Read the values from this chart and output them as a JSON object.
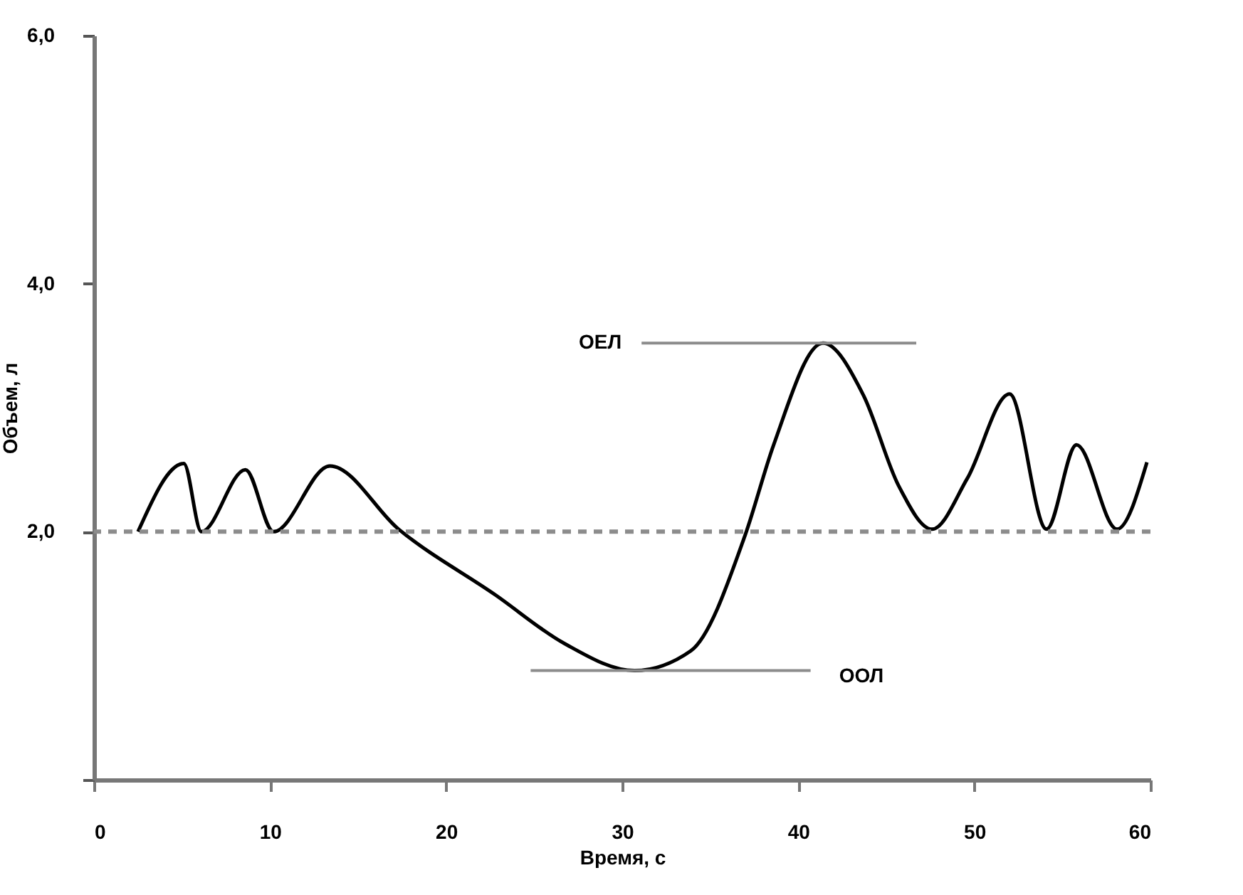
{
  "chart_data": {
    "type": "line",
    "xlabel": "Время, с",
    "ylabel": "Объем, л",
    "xlim": [
      0,
      60
    ],
    "ylim": [
      0,
      6
    ],
    "xticks": [
      0,
      10,
      20,
      30,
      40,
      50,
      60
    ],
    "yticks": [
      {
        "value": 0,
        "label": null
      },
      {
        "value": 2,
        "label": "2,0"
      },
      {
        "value": 4,
        "label": "4,0"
      },
      {
        "value": 6,
        "label": "6,0"
      }
    ],
    "grid": false,
    "marker": "none",
    "line_style": "solid",
    "series": [
      {
        "color": "#000000",
        "x": [
          2.5,
          5.1,
          6.1,
          8.6,
          10.2,
          13.4,
          17.3,
          22.8,
          26.7,
          30.7,
          33.9,
          37.0,
          38.6,
          41.4,
          43.7,
          45.7,
          47.6,
          49.6,
          52.0,
          54.1,
          55.8,
          58.1,
          59.8
        ],
        "values": [
          2.0,
          2.55,
          2.0,
          2.5,
          2.0,
          2.53,
          2.02,
          1.49,
          1.1,
          0.88,
          1.04,
          1.98,
          2.7,
          3.52,
          3.1,
          2.37,
          2.02,
          2.43,
          3.11,
          2.02,
          2.7,
          2.02,
          2.56
        ]
      },
      {
        "name": "ОЕЛ",
        "color": "#8c8c8c",
        "x": [
          31.1,
          46.7
        ],
        "values": [
          3.52,
          3.52
        ]
      },
      {
        "name": "ООЛ",
        "color": "#8c8c8c",
        "x": [
          24.8,
          40.7
        ],
        "values": [
          0.88,
          0.88
        ]
      }
    ],
    "ref_lines": [
      {
        "axis": "y",
        "value": 2,
        "color": "#8c8c8c",
        "line_style": "dashed"
      }
    ]
  }
}
